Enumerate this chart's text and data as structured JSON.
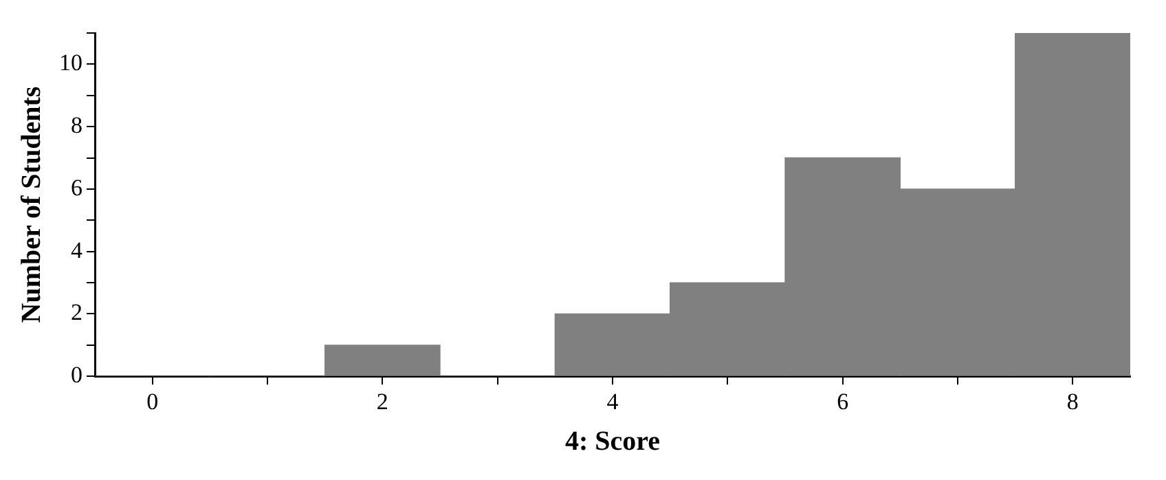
{
  "chart_data": {
    "type": "histogram",
    "xlabel": "4: Score",
    "ylabel": "Number of Students",
    "bins": [
      -0.5,
      0.5,
      1.5,
      2.5,
      3.5,
      4.5,
      5.5,
      6.5,
      7.5,
      8.5
    ],
    "values": [
      0,
      0,
      1,
      0,
      2,
      3,
      7,
      6,
      11
    ],
    "color": "#808080",
    "xlim": [
      -0.5,
      8.5
    ],
    "xticks": [
      0,
      {
        "value": 1,
        "label": null
      },
      2,
      {
        "value": 3,
        "label": null
      },
      4,
      {
        "value": 5,
        "label": null
      },
      6,
      {
        "value": 7,
        "label": null
      },
      8
    ],
    "ylim": [
      0,
      11
    ],
    "yticks": [
      0,
      {
        "value": 1,
        "label": null
      },
      2,
      {
        "value": 3,
        "label": null
      },
      4,
      {
        "value": 5,
        "label": null
      },
      6,
      {
        "value": 7,
        "label": null
      },
      8,
      {
        "value": 9,
        "label": null
      },
      10,
      {
        "value": 11,
        "label": null
      }
    ],
    "grid": false,
    "legend": false
  }
}
